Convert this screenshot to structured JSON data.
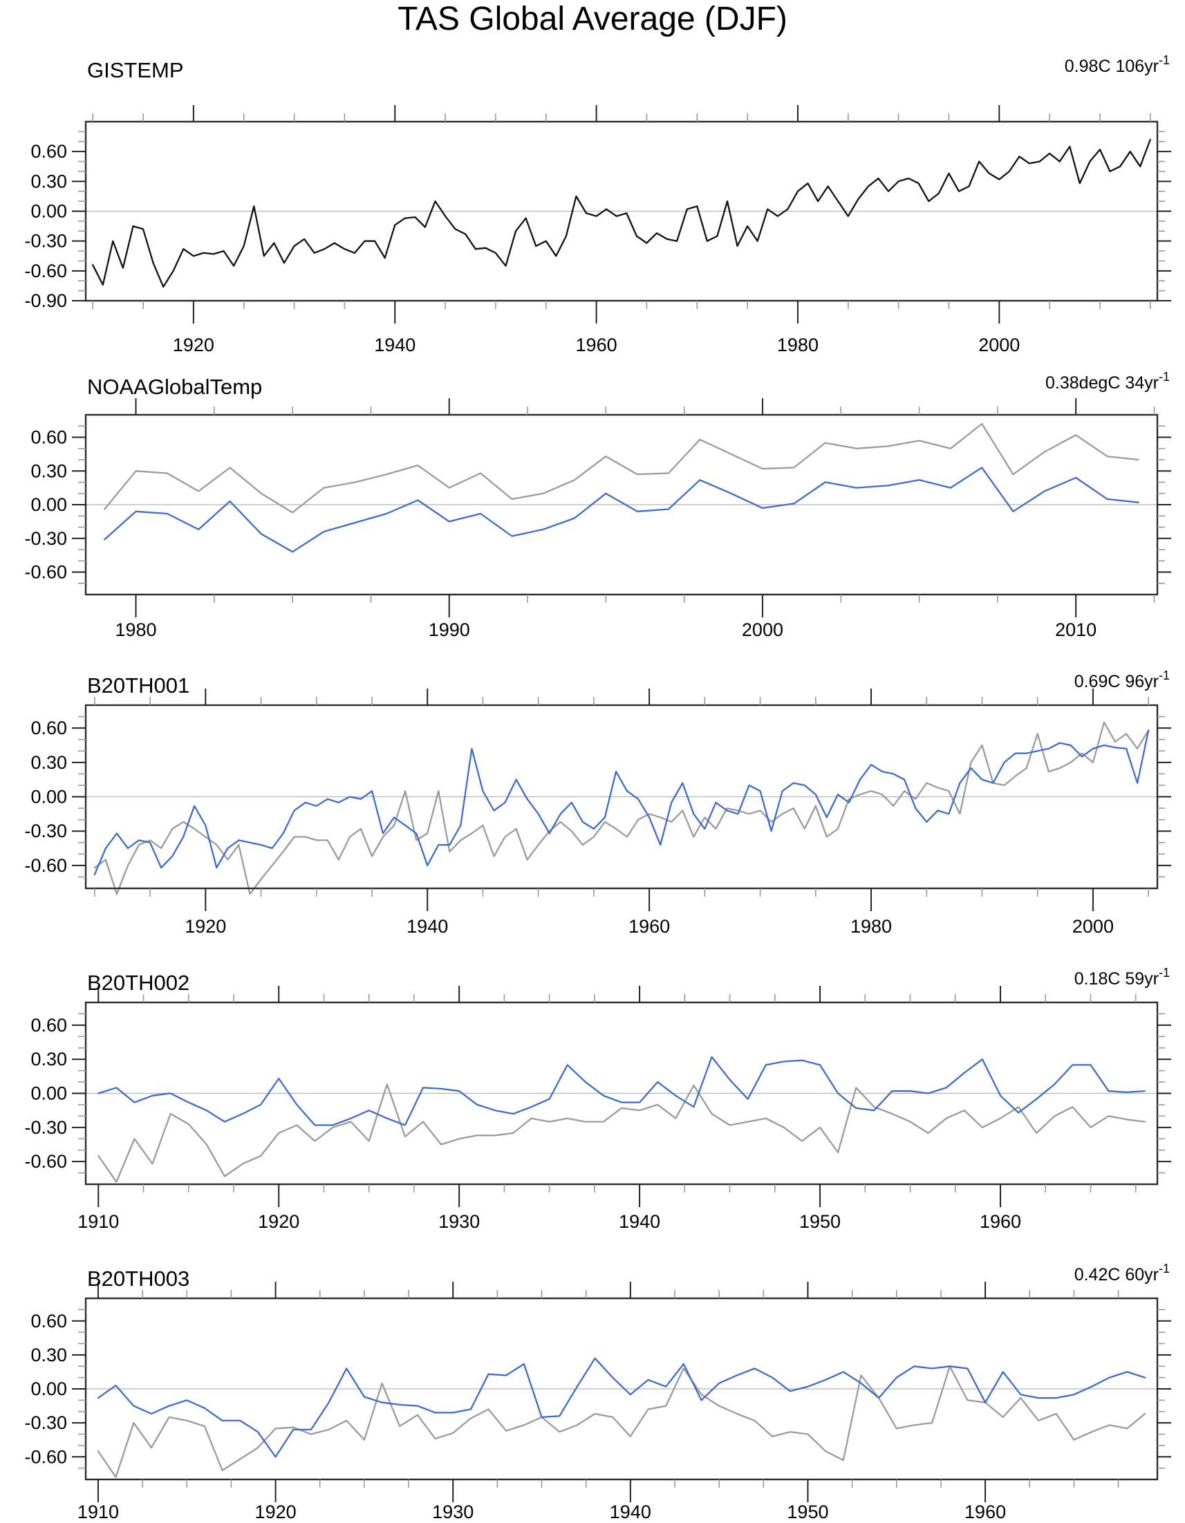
{
  "title": "TAS Global Average (DJF)",
  "colors": {
    "black_series": "#111111",
    "gray_series": "#9b9b9b",
    "blue_series": "#3d6dcc",
    "zero_line": "#b4b4b4",
    "frame": "#2b2b2b",
    "minor_tick": "#999999",
    "major_tick": "#222222",
    "text": "#000000"
  },
  "chart_data": [
    {
      "type": "line",
      "title": "GISTEMP",
      "annotation": "0.98C 106yr",
      "annotation_sup": "-1",
      "xlim": [
        1909.3,
        2015.7
      ],
      "ylim": [
        -0.9,
        0.9
      ],
      "x_ticks": [
        1920,
        1940,
        1960,
        1980,
        2000
      ],
      "x_tick_labels": [
        "1920",
        "1940",
        "1960",
        "1980",
        "2000"
      ],
      "x_minor_step": 5,
      "y_ticks": [
        0.6,
        0.3,
        0.0,
        -0.3,
        -0.6,
        -0.9
      ],
      "y_tick_labels": [
        "0.60",
        "0.30",
        "0.00",
        "-0.30",
        "-0.60",
        "-0.90"
      ],
      "y_minor_step": 0.1,
      "series": [
        {
          "name": "gistemp-black",
          "color": "#111111",
          "x_start": 1910,
          "values": [
            -0.54,
            -0.74,
            -0.3,
            -0.57,
            -0.15,
            -0.18,
            -0.52,
            -0.76,
            -0.6,
            -0.38,
            -0.45,
            -0.42,
            -0.43,
            -0.4,
            -0.55,
            -0.35,
            0.05,
            -0.45,
            -0.32,
            -0.52,
            -0.35,
            -0.28,
            -0.42,
            -0.38,
            -0.32,
            -0.38,
            -0.42,
            -0.3,
            -0.3,
            -0.47,
            -0.14,
            -0.07,
            -0.06,
            -0.16,
            0.1,
            -0.05,
            -0.18,
            -0.23,
            -0.38,
            -0.37,
            -0.42,
            -0.55,
            -0.2,
            -0.07,
            -0.35,
            -0.3,
            -0.45,
            -0.25,
            0.15,
            -0.02,
            -0.05,
            0.02,
            -0.05,
            -0.02,
            -0.25,
            -0.32,
            -0.22,
            -0.28,
            -0.3,
            0.02,
            0.05,
            -0.3,
            -0.25,
            0.1,
            -0.35,
            -0.15,
            -0.3,
            0.02,
            -0.05,
            0.02,
            0.2,
            0.28,
            0.1,
            0.25,
            0.1,
            -0.05,
            0.12,
            0.25,
            0.33,
            0.2,
            0.3,
            0.33,
            0.28,
            0.1,
            0.18,
            0.38,
            0.2,
            0.25,
            0.5,
            0.38,
            0.32,
            0.4,
            0.55,
            0.48,
            0.5,
            0.58,
            0.5,
            0.65,
            0.28,
            0.5,
            0.62,
            0.4,
            0.45,
            0.6,
            0.45,
            0.72
          ]
        }
      ]
    },
    {
      "type": "line",
      "title": "NOAAGlobalTemp",
      "annotation": "0.38degC 34yr",
      "annotation_sup": "-1",
      "xlim": [
        1978.4,
        2012.6
      ],
      "ylim": [
        -0.8,
        0.8
      ],
      "x_ticks": [
        1980,
        1990,
        2000,
        2010
      ],
      "x_tick_labels": [
        "1980",
        "1990",
        "2000",
        "2010"
      ],
      "x_minor_step": 2.5,
      "y_ticks": [
        0.6,
        0.3,
        0.0,
        -0.3,
        -0.6
      ],
      "y_tick_labels": [
        "0.60",
        "0.30",
        "0.00",
        "-0.30",
        "-0.60"
      ],
      "y_minor_step": 0.1,
      "series": [
        {
          "name": "noaa-gray",
          "color": "#9b9b9b",
          "x_start": 1979,
          "values": [
            -0.04,
            0.3,
            0.28,
            0.12,
            0.33,
            0.1,
            -0.07,
            0.15,
            0.2,
            0.27,
            0.35,
            0.15,
            0.28,
            0.05,
            0.1,
            0.22,
            0.43,
            0.27,
            0.28,
            0.58,
            0.45,
            0.32,
            0.33,
            0.55,
            0.5,
            0.52,
            0.57,
            0.5,
            0.72,
            0.27,
            0.47,
            0.62,
            0.43,
            0.4
          ]
        },
        {
          "name": "noaa-blue",
          "color": "#3d6dcc",
          "x_start": 1979,
          "values": [
            -0.31,
            -0.06,
            -0.08,
            -0.22,
            0.03,
            -0.26,
            -0.42,
            -0.24,
            -0.16,
            -0.08,
            0.04,
            -0.15,
            -0.08,
            -0.28,
            -0.22,
            -0.12,
            0.1,
            -0.06,
            -0.04,
            0.22,
            0.1,
            -0.03,
            0.01,
            0.2,
            0.15,
            0.17,
            0.22,
            0.15,
            0.33,
            -0.06,
            0.12,
            0.24,
            0.05,
            0.02
          ]
        }
      ]
    },
    {
      "type": "line",
      "title": "B20TH001",
      "annotation": "0.69C 96yr",
      "annotation_sup": "-1",
      "xlim": [
        1909.2,
        2005.8
      ],
      "ylim": [
        -0.8,
        0.8
      ],
      "x_ticks": [
        1920,
        1940,
        1960,
        1980,
        2000
      ],
      "x_tick_labels": [
        "1920",
        "1940",
        "1960",
        "1980",
        "2000"
      ],
      "x_minor_step": 5,
      "y_ticks": [
        0.6,
        0.3,
        0.0,
        -0.3,
        -0.6
      ],
      "y_tick_labels": [
        "0.60",
        "0.30",
        "0.00",
        "-0.30",
        "-0.60"
      ],
      "y_minor_step": 0.1,
      "series": [
        {
          "name": "b20th001-gray",
          "color": "#9b9b9b",
          "x_start": 1910,
          "values": [
            -0.62,
            -0.55,
            -0.85,
            -0.6,
            -0.42,
            -0.38,
            -0.45,
            -0.28,
            -0.22,
            -0.28,
            -0.35,
            -0.42,
            -0.55,
            -0.42,
            -0.85,
            -0.72,
            -0.6,
            -0.48,
            -0.35,
            -0.35,
            -0.38,
            -0.38,
            -0.55,
            -0.35,
            -0.28,
            -0.52,
            -0.35,
            -0.25,
            0.05,
            -0.38,
            -0.32,
            0.05,
            -0.48,
            -0.38,
            -0.32,
            -0.25,
            -0.52,
            -0.35,
            -0.28,
            -0.55,
            -0.42,
            -0.3,
            -0.22,
            -0.3,
            -0.42,
            -0.35,
            -0.22,
            -0.28,
            -0.35,
            -0.2,
            -0.15,
            -0.18,
            -0.22,
            -0.12,
            -0.35,
            -0.18,
            -0.28,
            -0.1,
            -0.12,
            -0.15,
            -0.12,
            -0.22,
            -0.15,
            -0.1,
            -0.28,
            -0.08,
            -0.35,
            -0.28,
            -0.02,
            0.02,
            0.05,
            0.02,
            -0.08,
            0.05,
            -0.02,
            0.12,
            0.08,
            0.05,
            -0.15,
            0.3,
            0.45,
            0.12,
            0.1,
            0.18,
            0.25,
            0.55,
            0.22,
            0.25,
            0.3,
            0.38,
            0.3,
            0.65,
            0.48,
            0.55,
            0.42,
            0.58
          ]
        },
        {
          "name": "b20th001-blue",
          "color": "#3d6dcc",
          "x_start": 1910,
          "values": [
            -0.68,
            -0.45,
            -0.32,
            -0.45,
            -0.38,
            -0.4,
            -0.62,
            -0.52,
            -0.35,
            -0.08,
            -0.25,
            -0.62,
            -0.45,
            -0.38,
            -0.4,
            -0.42,
            -0.45,
            -0.32,
            -0.12,
            -0.05,
            -0.08,
            -0.02,
            -0.05,
            0.0,
            -0.02,
            0.05,
            -0.32,
            -0.18,
            -0.25,
            -0.32,
            -0.6,
            -0.42,
            -0.42,
            -0.25,
            0.42,
            0.05,
            -0.12,
            -0.05,
            0.15,
            -0.02,
            -0.15,
            -0.32,
            -0.15,
            -0.05,
            -0.22,
            -0.28,
            -0.18,
            0.22,
            0.05,
            -0.02,
            -0.18,
            -0.42,
            -0.05,
            0.12,
            -0.15,
            -0.28,
            -0.05,
            -0.12,
            -0.15,
            0.1,
            0.05,
            -0.3,
            0.05,
            0.12,
            0.1,
            0.02,
            -0.18,
            0.02,
            -0.05,
            0.15,
            0.28,
            0.22,
            0.2,
            0.15,
            -0.1,
            -0.22,
            -0.12,
            -0.15,
            0.12,
            0.25,
            0.15,
            0.12,
            0.3,
            0.38,
            0.38,
            0.4,
            0.42,
            0.47,
            0.45,
            0.35,
            0.42,
            0.45,
            0.43,
            0.42,
            0.12,
            0.58
          ]
        }
      ]
    },
    {
      "type": "line",
      "title": "B20TH002",
      "annotation": "0.18C 59yr",
      "annotation_sup": "-1",
      "xlim": [
        1909.3,
        1968.7
      ],
      "ylim": [
        -0.8,
        0.8
      ],
      "x_ticks": [
        1910,
        1920,
        1930,
        1940,
        1950,
        1960
      ],
      "x_tick_labels": [
        "1910",
        "1920",
        "1930",
        "1940",
        "1950",
        "1960"
      ],
      "x_minor_step": 2.5,
      "y_ticks": [
        0.6,
        0.3,
        0.0,
        -0.3,
        -0.6
      ],
      "y_tick_labels": [
        "0.60",
        "0.30",
        "0.00",
        "-0.30",
        "-0.60"
      ],
      "y_minor_step": 0.1,
      "series": [
        {
          "name": "b20th002-gray",
          "color": "#9b9b9b",
          "x_start": 1910,
          "values": [
            -0.55,
            -0.78,
            -0.4,
            -0.62,
            -0.18,
            -0.27,
            -0.45,
            -0.73,
            -0.62,
            -0.55,
            -0.35,
            -0.28,
            -0.42,
            -0.3,
            -0.25,
            -0.42,
            0.08,
            -0.38,
            -0.25,
            -0.45,
            -0.4,
            -0.37,
            -0.37,
            -0.35,
            -0.22,
            -0.25,
            -0.22,
            -0.25,
            -0.25,
            -0.13,
            -0.15,
            -0.1,
            -0.22,
            0.07,
            -0.18,
            -0.28,
            -0.25,
            -0.22,
            -0.3,
            -0.42,
            -0.3,
            -0.52,
            0.05,
            -0.12,
            -0.18,
            -0.25,
            -0.35,
            -0.22,
            -0.15,
            -0.3,
            -0.22,
            -0.12,
            -0.35,
            -0.2,
            -0.12,
            -0.3,
            -0.2,
            -0.23,
            -0.25
          ]
        },
        {
          "name": "b20th002-blue",
          "color": "#3d6dcc",
          "x_start": 1910,
          "values": [
            0.0,
            0.05,
            -0.08,
            -0.02,
            0.0,
            -0.08,
            -0.15,
            -0.25,
            -0.18,
            -0.1,
            0.13,
            -0.1,
            -0.28,
            -0.28,
            -0.22,
            -0.15,
            -0.22,
            -0.28,
            0.05,
            0.04,
            0.02,
            -0.1,
            -0.15,
            -0.18,
            -0.12,
            -0.05,
            0.25,
            0.1,
            -0.02,
            -0.08,
            -0.08,
            0.1,
            -0.02,
            -0.12,
            0.32,
            0.12,
            -0.05,
            0.25,
            0.28,
            0.29,
            0.25,
            0.0,
            -0.13,
            -0.15,
            0.02,
            0.02,
            0.0,
            0.05,
            0.18,
            0.3,
            -0.02,
            -0.17,
            -0.05,
            0.08,
            0.25,
            0.25,
            0.02,
            0.01,
            0.02
          ]
        }
      ]
    },
    {
      "type": "line",
      "title": "B20TH003",
      "annotation": "0.42C 60yr",
      "annotation_sup": "-1",
      "xlim": [
        1909.3,
        1969.7
      ],
      "ylim": [
        -0.8,
        0.8
      ],
      "x_ticks": [
        1910,
        1920,
        1930,
        1940,
        1950,
        1960
      ],
      "x_tick_labels": [
        "1910",
        "1920",
        "1930",
        "1940",
        "1950",
        "1960"
      ],
      "x_minor_step": 2.5,
      "y_ticks": [
        0.6,
        0.3,
        0.0,
        -0.3,
        -0.6
      ],
      "y_tick_labels": [
        "0.60",
        "0.30",
        "0.00",
        "-0.30",
        "-0.60"
      ],
      "y_minor_step": 0.1,
      "series": [
        {
          "name": "b20th003-gray",
          "color": "#9b9b9b",
          "x_start": 1910,
          "values": [
            -0.55,
            -0.78,
            -0.3,
            -0.52,
            -0.25,
            -0.28,
            -0.33,
            -0.72,
            -0.62,
            -0.52,
            -0.35,
            -0.34,
            -0.4,
            -0.36,
            -0.28,
            -0.45,
            0.05,
            -0.33,
            -0.23,
            -0.44,
            -0.39,
            -0.26,
            -0.18,
            -0.37,
            -0.32,
            -0.25,
            -0.38,
            -0.32,
            -0.22,
            -0.25,
            -0.42,
            -0.18,
            -0.15,
            0.18,
            -0.05,
            -0.15,
            -0.22,
            -0.28,
            -0.42,
            -0.38,
            -0.4,
            -0.55,
            -0.63,
            0.12,
            -0.08,
            -0.35,
            -0.32,
            -0.3,
            0.2,
            -0.1,
            -0.12,
            -0.25,
            -0.08,
            -0.28,
            -0.22,
            -0.45,
            -0.38,
            -0.32,
            -0.35,
            -0.22
          ]
        },
        {
          "name": "b20th003-blue",
          "color": "#3d6dcc",
          "x_start": 1910,
          "values": [
            -0.08,
            0.03,
            -0.15,
            -0.22,
            -0.15,
            -0.1,
            -0.17,
            -0.28,
            -0.28,
            -0.38,
            -0.6,
            -0.36,
            -0.36,
            -0.12,
            0.18,
            -0.07,
            -0.12,
            -0.14,
            -0.15,
            -0.21,
            -0.21,
            -0.18,
            0.13,
            0.12,
            0.22,
            -0.25,
            -0.24,
            0.02,
            0.27,
            0.1,
            -0.05,
            0.08,
            0.02,
            0.22,
            -0.1,
            0.05,
            0.12,
            0.18,
            0.1,
            -0.02,
            0.02,
            0.08,
            0.15,
            0.05,
            -0.08,
            0.1,
            0.2,
            0.18,
            0.2,
            0.18,
            -0.12,
            0.15,
            -0.05,
            -0.08,
            -0.08,
            -0.05,
            0.02,
            0.1,
            0.15,
            0.1
          ]
        }
      ]
    }
  ]
}
